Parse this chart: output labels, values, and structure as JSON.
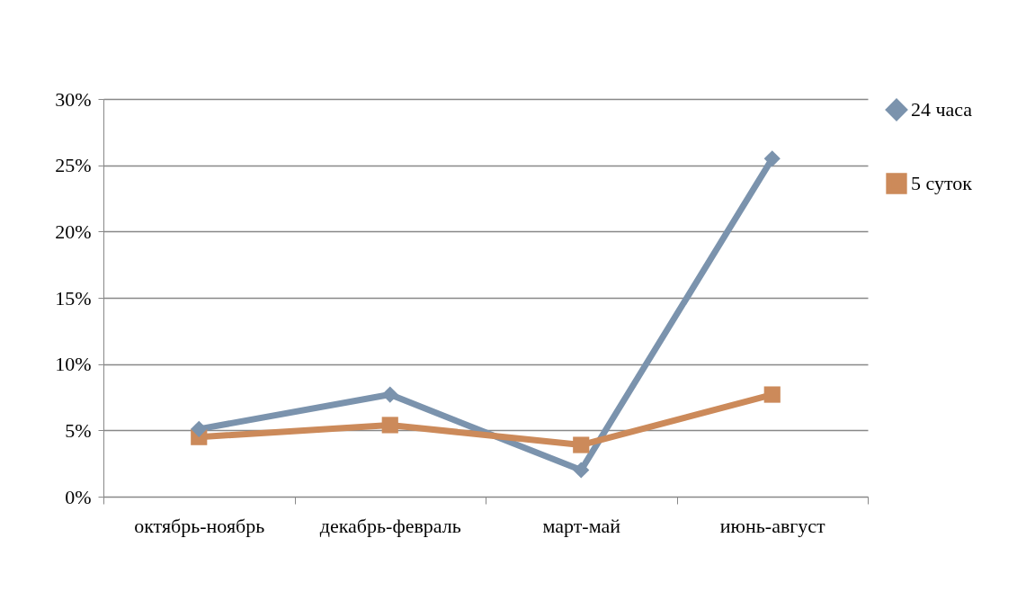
{
  "chart_data": {
    "type": "line",
    "categories": [
      "октябрь-ноябрь",
      "декабрь-февраль",
      "март-май",
      "июнь-август"
    ],
    "series": [
      {
        "name": "24 часа",
        "color": "#7b93ad",
        "marker": "diamond",
        "values": [
          5.1,
          7.7,
          2.0,
          25.5
        ]
      },
      {
        "name": "5 суток",
        "color": "#cc8a5a",
        "marker": "square",
        "values": [
          4.5,
          5.4,
          3.9,
          7.7
        ]
      }
    ],
    "ylim": [
      0,
      30
    ],
    "yticks": [
      {
        "value": 0,
        "label": "0%"
      },
      {
        "value": 5,
        "label": "5%"
      },
      {
        "value": 10,
        "label": "10%"
      },
      {
        "value": 15,
        "label": "15%"
      },
      {
        "value": 20,
        "label": "20%"
      },
      {
        "value": 25,
        "label": "25%"
      },
      {
        "value": 30,
        "label": "30%"
      }
    ],
    "grid": "y",
    "legend": "right"
  }
}
